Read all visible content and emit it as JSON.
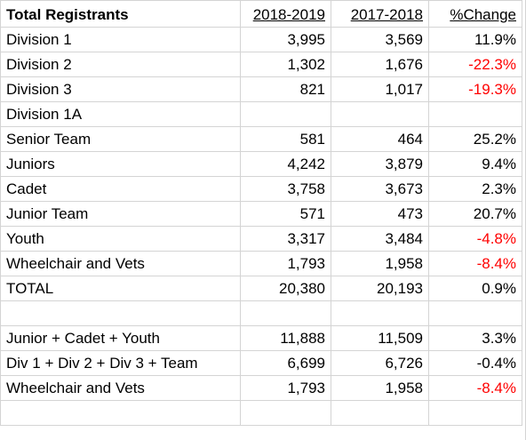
{
  "header": {
    "title": "Total Registrants",
    "col_2018_2019": "2018-2019",
    "col_2017_2018": "2017-2018",
    "col_change": "%Change"
  },
  "rows": [
    {
      "label": "Division 1",
      "y2019": "3,995",
      "y2018": "3,569",
      "change": "11.9%",
      "negative": false
    },
    {
      "label": "Division 2",
      "y2019": "1,302",
      "y2018": "1,676",
      "change": "-22.3%",
      "negative": true
    },
    {
      "label": "Division 3",
      "y2019": "821",
      "y2018": "1,017",
      "change": "-19.3%",
      "negative": true
    },
    {
      "label": "Division 1A",
      "y2019": "",
      "y2018": "",
      "change": "",
      "negative": false
    },
    {
      "label": "Senior Team",
      "y2019": "581",
      "y2018": "464",
      "change": "25.2%",
      "negative": false
    },
    {
      "label": "Juniors",
      "y2019": "4,242",
      "y2018": "3,879",
      "change": "9.4%",
      "negative": false
    },
    {
      "label": "Cadet",
      "y2019": "3,758",
      "y2018": "3,673",
      "change": "2.3%",
      "negative": false
    },
    {
      "label": "Junior Team",
      "y2019": "571",
      "y2018": "473",
      "change": "20.7%",
      "negative": false
    },
    {
      "label": "Youth",
      "y2019": "3,317",
      "y2018": "3,484",
      "change": "-4.8%",
      "negative": true
    },
    {
      "label": "Wheelchair and Vets",
      "y2019": "1,793",
      "y2018": "1,958",
      "change": "-8.4%",
      "negative": true
    },
    {
      "label": "TOTAL",
      "y2019": "20,380",
      "y2018": "20,193",
      "change": "0.9%",
      "negative": false
    },
    {
      "label": "",
      "y2019": "",
      "y2018": "",
      "change": "",
      "negative": false
    },
    {
      "label": "Junior + Cadet + Youth",
      "y2019": "11,888",
      "y2018": "11,509",
      "change": "3.3%",
      "negative": false
    },
    {
      "label": "Div 1 + Div 2 + Div 3 + Team",
      "y2019": "6,699",
      "y2018": "6,726",
      "change": "-0.4%",
      "negative": false
    },
    {
      "label": "Wheelchair and Vets",
      "y2019": "1,793",
      "y2018": "1,958",
      "change": "-8.4%",
      "negative": true
    },
    {
      "label": "",
      "y2019": "",
      "y2018": "",
      "change": "",
      "negative": false
    }
  ],
  "colors": {
    "negative": "#ff0000",
    "text": "#000000",
    "gridline": "#d4d4d4"
  }
}
